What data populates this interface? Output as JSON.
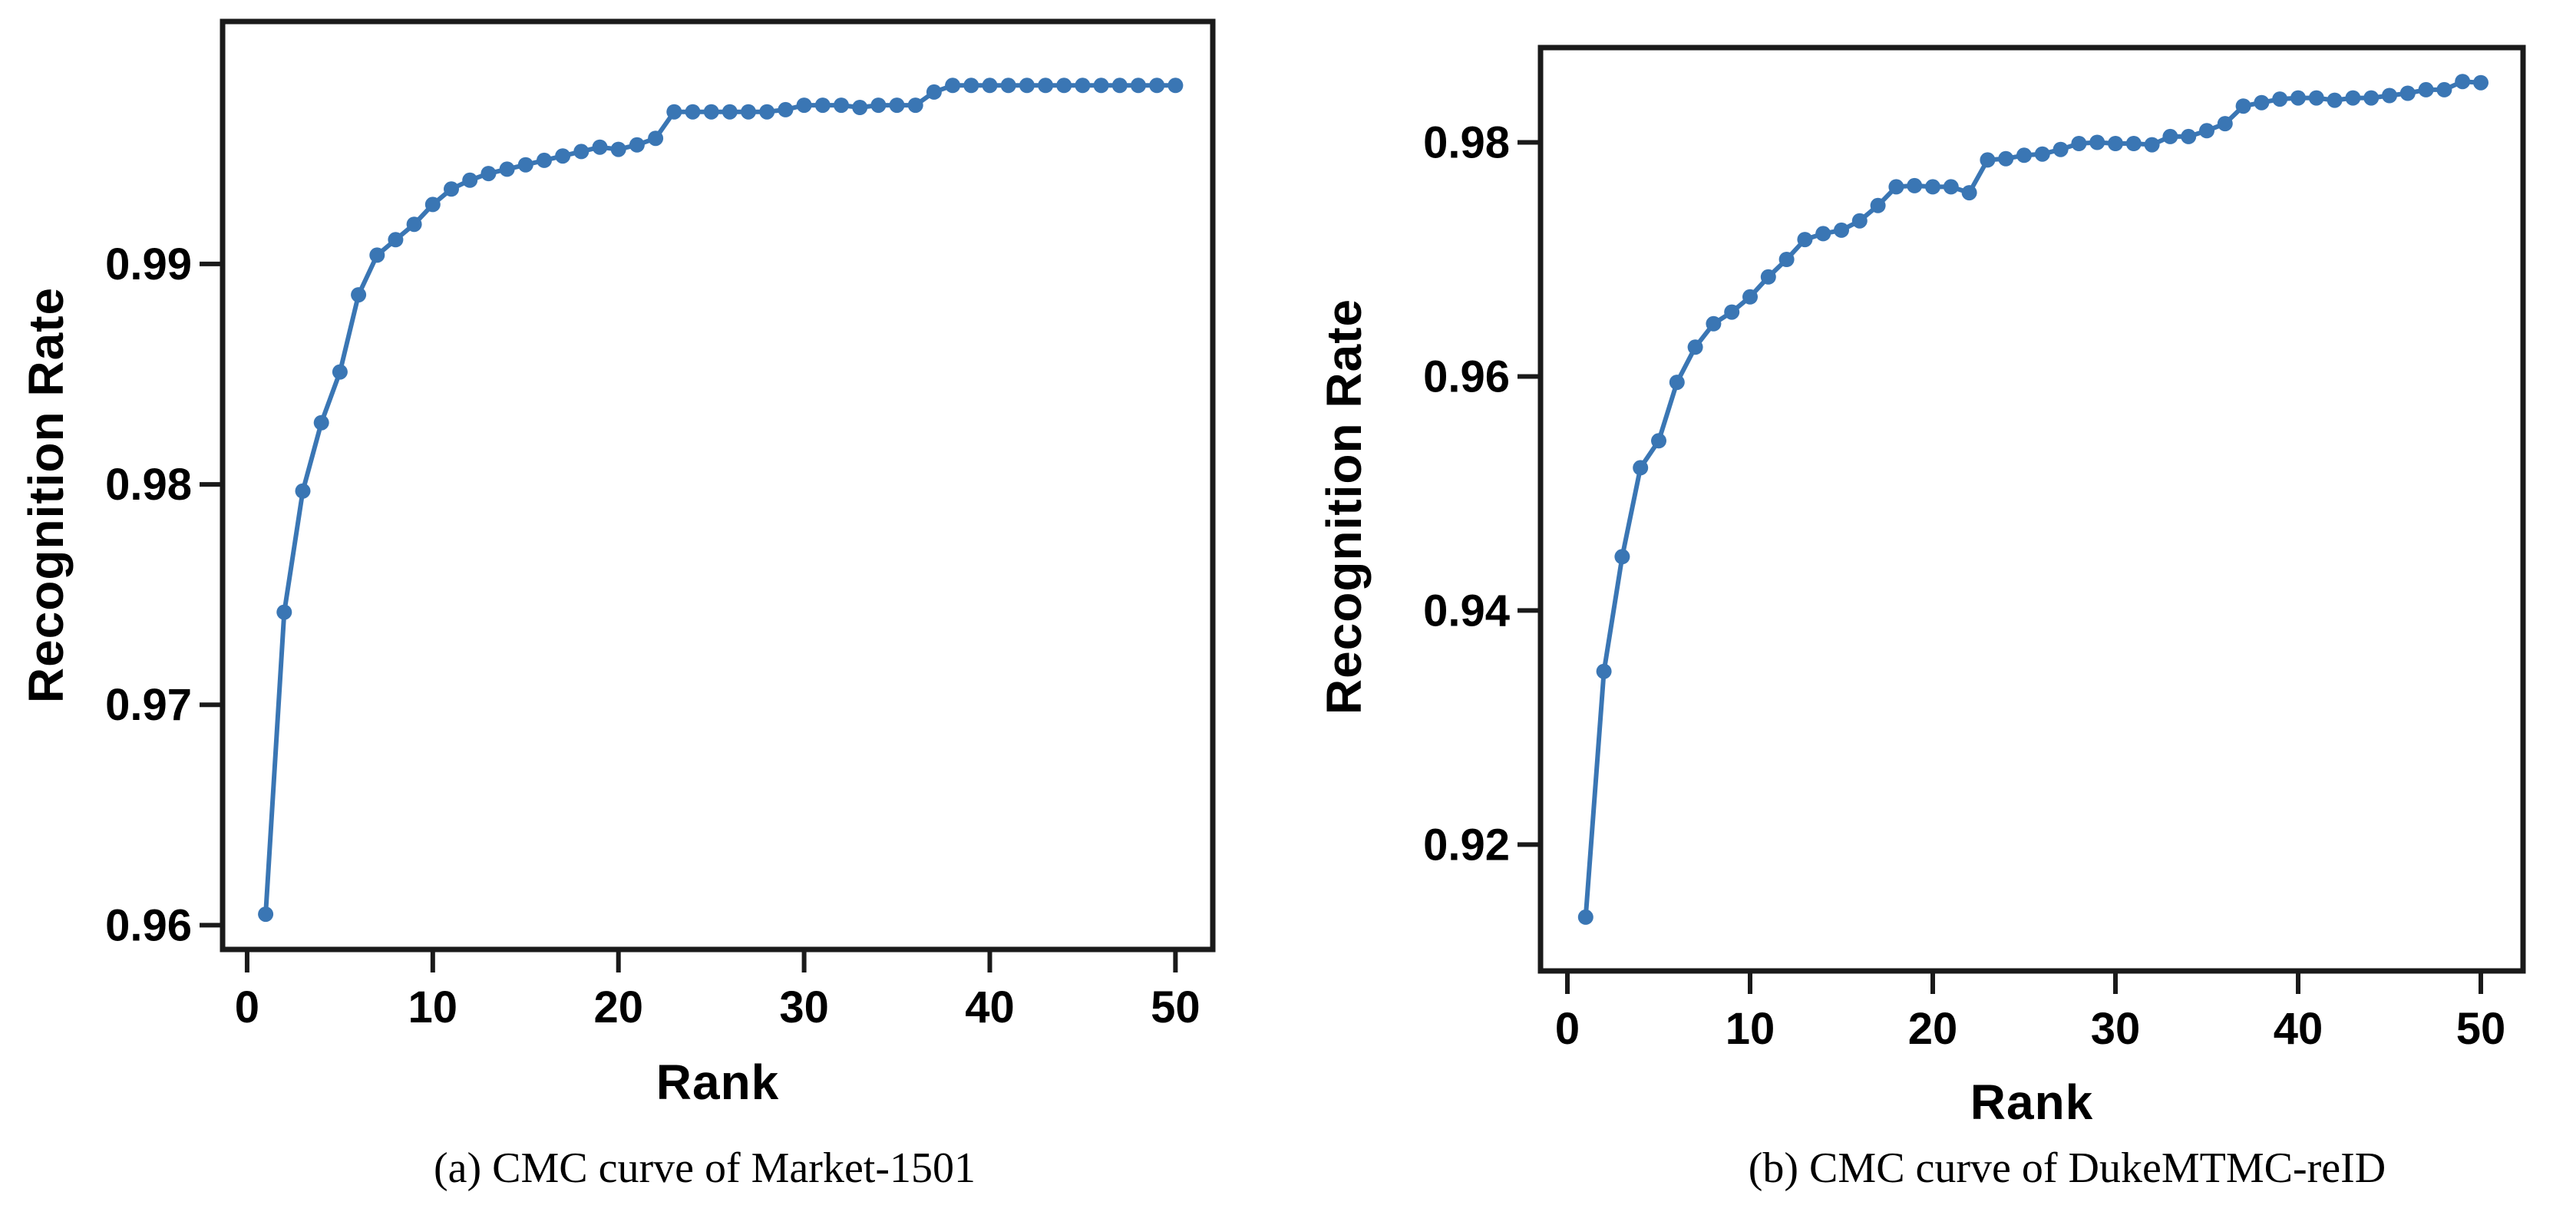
{
  "colors": {
    "line": "#3a76b4",
    "axis": "#1a1a1a",
    "text": "#000000",
    "background": "#ffffff"
  },
  "chart_data": [
    {
      "type": "line",
      "caption": "(a) CMC curve of Market-1501",
      "xlabel": "Rank",
      "ylabel": "Recognition Rate",
      "x": [
        1,
        2,
        3,
        4,
        5,
        6,
        7,
        8,
        9,
        10,
        11,
        12,
        13,
        14,
        15,
        16,
        17,
        18,
        19,
        20,
        21,
        22,
        23,
        24,
        25,
        26,
        27,
        28,
        29,
        30,
        31,
        32,
        33,
        34,
        35,
        36,
        37,
        38,
        39,
        40,
        41,
        42,
        43,
        44,
        45,
        46,
        47,
        48,
        49,
        50
      ],
      "y": [
        0.9605,
        0.9742,
        0.9797,
        0.9828,
        0.9851,
        0.9886,
        0.9904,
        0.9911,
        0.9918,
        0.9927,
        0.9934,
        0.9938,
        0.9941,
        0.9943,
        0.9945,
        0.9947,
        0.9949,
        0.9951,
        0.9953,
        0.9952,
        0.9954,
        0.9957,
        0.9969,
        0.9969,
        0.9969,
        0.9969,
        0.9969,
        0.9969,
        0.997,
        0.9972,
        0.9972,
        0.9972,
        0.9971,
        0.9972,
        0.9972,
        0.9972,
        0.9978,
        0.9981,
        0.9981,
        0.9981,
        0.9981,
        0.9981,
        0.9981,
        0.9981,
        0.9981,
        0.9981,
        0.9981,
        0.9981,
        0.9981,
        0.9981
      ],
      "xticks": [
        0,
        10,
        20,
        30,
        40,
        50
      ],
      "yticks": [
        0.96,
        0.97,
        0.98,
        0.99
      ],
      "ytick_labels": [
        "0.96",
        "0.97",
        "0.98",
        "0.99"
      ],
      "xlim": [
        -1.32,
        52.01
      ],
      "ylim": [
        0.9589,
        1.001
      ],
      "grid": false,
      "legend": "none",
      "marker": "circle"
    },
    {
      "type": "line",
      "caption": "(b) CMC curve of DukeMTMC-reID",
      "xlabel": "Rank",
      "ylabel": "Recognition Rate",
      "x": [
        1,
        2,
        3,
        4,
        5,
        6,
        7,
        8,
        9,
        10,
        11,
        12,
        13,
        14,
        15,
        16,
        17,
        18,
        19,
        20,
        21,
        22,
        23,
        24,
        25,
        26,
        27,
        28,
        29,
        30,
        31,
        32,
        33,
        34,
        35,
        36,
        37,
        38,
        39,
        40,
        41,
        42,
        43,
        44,
        45,
        46,
        47,
        48,
        49,
        50
      ],
      "y": [
        0.9138,
        0.9348,
        0.9446,
        0.9522,
        0.9545,
        0.9595,
        0.9625,
        0.9645,
        0.9655,
        0.9668,
        0.9685,
        0.97,
        0.9717,
        0.9722,
        0.9725,
        0.9733,
        0.9746,
        0.9762,
        0.9763,
        0.9762,
        0.9762,
        0.9757,
        0.9785,
        0.9786,
        0.9789,
        0.979,
        0.9794,
        0.9799,
        0.98,
        0.9799,
        0.9799,
        0.9798,
        0.9805,
        0.9805,
        0.981,
        0.9816,
        0.9831,
        0.9834,
        0.9837,
        0.9838,
        0.9838,
        0.9836,
        0.9838,
        0.9838,
        0.984,
        0.9842,
        0.9845,
        0.9845,
        0.9852,
        0.9851
      ],
      "xticks": [
        0,
        10,
        20,
        30,
        40,
        50
      ],
      "yticks": [
        0.92,
        0.94,
        0.96,
        0.98
      ],
      "ytick_labels": [
        "0.92",
        "0.94",
        "0.96",
        "0.98"
      ],
      "xlim": [
        -1.47,
        52.31
      ],
      "ylim": [
        0.9092,
        0.9881
      ],
      "grid": false,
      "legend": "none",
      "marker": "circle"
    }
  ]
}
